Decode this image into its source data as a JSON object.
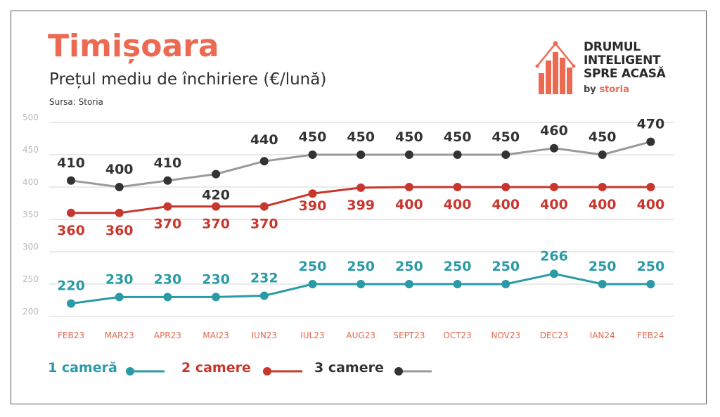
{
  "header": {
    "title": "Timișoara",
    "subtitle": "Prețul mediu de închiriere (€/lună)",
    "source": "Sursa: Storia"
  },
  "logo": {
    "line1": "DRUMUL",
    "line2": "INTELIGENT",
    "line3": "SPRE ACASĂ",
    "by": "by",
    "brand": "storia"
  },
  "colors": {
    "title": "#ec6a52",
    "series_1": "#2a9aa6",
    "series_2": "#c8372d",
    "series_3_marker": "#333333",
    "series_3_line": "#999999",
    "grid": "#e3e3e3"
  },
  "chart_data": {
    "type": "line",
    "categories": [
      "FEB23",
      "MAR23",
      "APR23",
      "MAI23",
      "IUN23",
      "IUL23",
      "AUG23",
      "SEPT23",
      "OCT23",
      "NOV23",
      "DEC23",
      "IAN24",
      "FEB24"
    ],
    "ylim": [
      200,
      500
    ],
    "yticks": [
      "200",
      "250",
      "300",
      "350",
      "400",
      "450",
      "500"
    ],
    "grid": true,
    "legend_position": "bottom",
    "series": [
      {
        "name": "1 cameră",
        "values": [
          220,
          230,
          230,
          230,
          232,
          250,
          250,
          250,
          250,
          250,
          266,
          250,
          250
        ]
      },
      {
        "name": "2 camere",
        "values": [
          360,
          360,
          370,
          370,
          370,
          390,
          399,
          400,
          400,
          400,
          400,
          400,
          400
        ]
      },
      {
        "name": "3 camere",
        "values": [
          410,
          400,
          410,
          420,
          440,
          450,
          450,
          450,
          450,
          450,
          460,
          450,
          470
        ]
      }
    ]
  }
}
